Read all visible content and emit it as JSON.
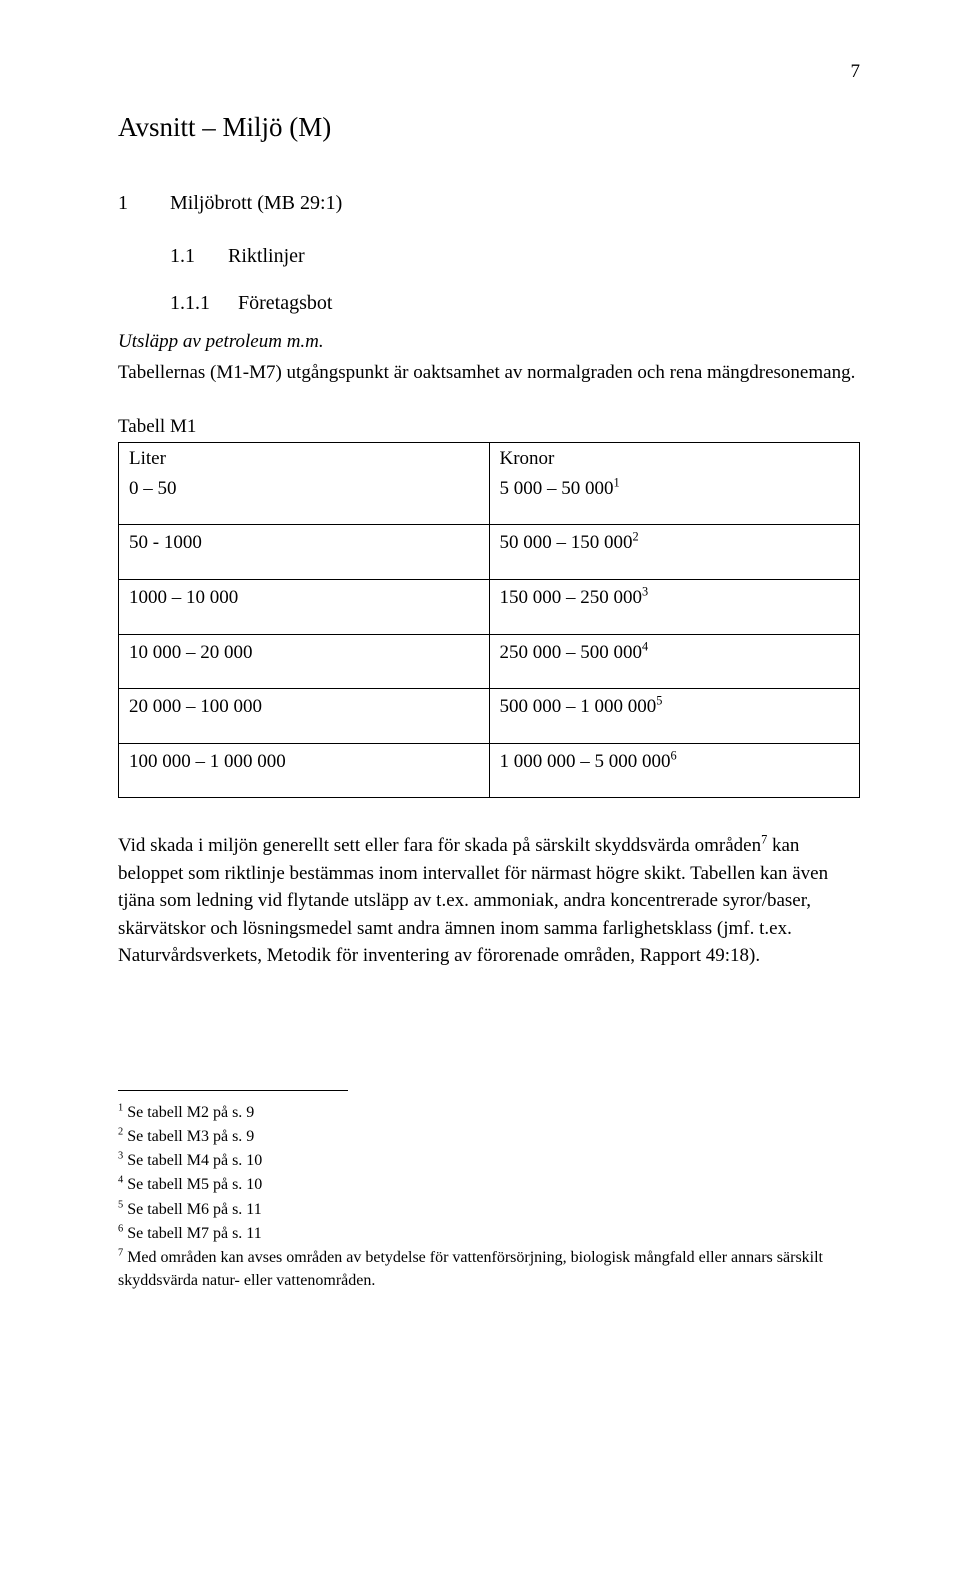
{
  "page_number": "7",
  "section_title": "Avsnitt – Miljö (M)",
  "h1": {
    "num": "1",
    "text": "Miljöbrott (MB 29:1)"
  },
  "h2": {
    "num": "1.1",
    "text": "Riktlinjer"
  },
  "h3": {
    "num": "1.1.1",
    "text": "Företagsbot"
  },
  "italic_line": "Utsläpp av petroleum m.m.",
  "intro_para": "Tabellernas (M1-M7) utgångspunkt är oaktsamhet av normalgraden och rena mängdresonemang.",
  "table_caption": "Tabell M1",
  "table": {
    "col_headers": [
      "Liter",
      "Kronor"
    ],
    "rows": [
      {
        "left": "0 – 50",
        "right": "5 000 – 50 000",
        "sup": "1"
      },
      {
        "left": "50 - 1000",
        "right": "50 000 – 150 000",
        "sup": "2"
      },
      {
        "left": "1000 – 10 000",
        "right": "150 000 – 250 000",
        "sup": "3"
      },
      {
        "left": "10 000 – 20 000",
        "right": "250 000 – 500 000",
        "sup": "4"
      },
      {
        "left": "20 000 – 100 000",
        "right": "500 000 – 1 000 000",
        "sup": "5"
      },
      {
        "left": "100 000 – 1 000 000",
        "right": "1 000 000 – 5 000 000",
        "sup": "6"
      }
    ]
  },
  "body_para": "Vid skada i miljön generellt sett eller fara för skada på särskilt skyddsvärda områden<sup>7</sup> kan beloppet som riktlinje bestämmas inom intervallet för närmast högre skikt. Tabellen kan även tjäna som ledning vid flytande utsläpp av t.ex. ammoniak, andra koncentrerade syror/baser, skärvätskor och lösningsmedel samt andra ämnen inom samma farlighetsklass (jmf. t.ex. Naturvårdsverkets, Metodik för inventering av förorenade områden, Rapport 49:18).",
  "footnotes": [
    {
      "n": "1",
      "text": "Se tabell M2 på s. 9"
    },
    {
      "n": "2",
      "text": "Se tabell M3 på s. 9"
    },
    {
      "n": "3",
      "text": "Se tabell M4 på s. 10"
    },
    {
      "n": "4",
      "text": "Se tabell M5 på s. 10"
    },
    {
      "n": "5",
      "text": "Se tabell M6 på s. 11"
    },
    {
      "n": "6",
      "text": "Se tabell M7 på s. 11"
    },
    {
      "n": "7",
      "text": "Med områden kan avses områden av betydelse för vattenförsörjning, biologisk mångfald eller annars särskilt skyddsvärda natur- eller vattenområden."
    }
  ]
}
